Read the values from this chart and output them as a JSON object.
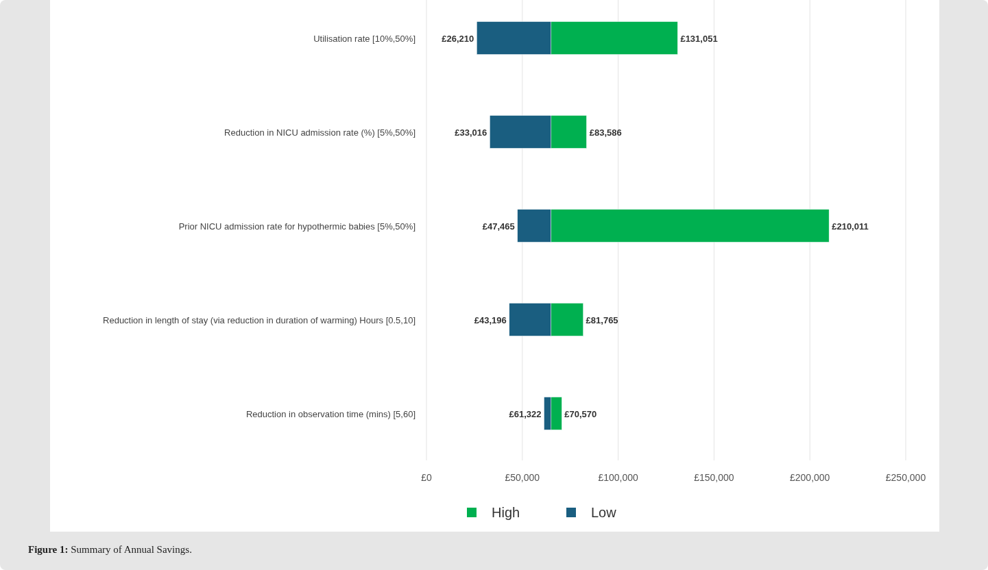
{
  "chart_data": {
    "type": "bar",
    "orientation": "horizontal",
    "categories": [
      "Utilisation rate [10%,50%]",
      "Reduction in NICU admission rate (%) [5%,50%]",
      "Prior NICU admission rate for hypothermic babies [5%,50%]",
      "Reduction in length of stay (via reduction in duration of warming) Hours [0.5,10]",
      "Reduction in observation time (mins) [5,60]"
    ],
    "series": [
      {
        "name": "High",
        "color": "#00b050",
        "base": [
          65000,
          65000,
          65000,
          65000,
          65000
        ],
        "values": [
          66000,
          18500,
          145000,
          16800,
          5600
        ]
      },
      {
        "name": "Low",
        "color": "#1a5e80",
        "base": [
          26210,
          33016,
          47465,
          43196,
          61322
        ],
        "values": [
          38800,
          32000,
          17500,
          21800,
          3700
        ]
      }
    ],
    "xlim": [
      0,
      250000
    ],
    "xticks": [
      {
        "value": 0,
        "label": "£0"
      },
      {
        "value": 50000,
        "label": "£50,000"
      },
      {
        "value": 100000,
        "label": "£100,000"
      },
      {
        "value": 150000,
        "label": "£150,000"
      },
      {
        "value": 200000,
        "label": "£200,000"
      },
      {
        "value": 250000,
        "label": "£250,000"
      }
    ],
    "grid": "x",
    "legend": "bottom",
    "annotations": [
      {
        "text": "£131,051",
        "x": 131051,
        "y": "Utilisation rate [10%,50%]"
      },
      {
        "text": "£26,210",
        "x": 26210,
        "y": "Utilisation rate [10%,50%]"
      },
      {
        "text": "£83,586",
        "x": 83586,
        "y": "Reduction in NICU admission rate (%) [5%,50%]"
      },
      {
        "text": "£33,016",
        "x": 33016,
        "y": "Reduction in NICU admission rate (%) [5%,50%]"
      },
      {
        "text": "£210,011",
        "x": 210011,
        "y": "Prior NICU admission rate for hypothermic babies [5%,50%]"
      },
      {
        "text": "£47,465",
        "x": 47465,
        "y": "Prior NICU admission rate for hypothermic babies [5%,50%]"
      },
      {
        "text": "£81,765",
        "x": 81765,
        "y": "Reduction in length of stay (via reduction in duration of warming) Hours [0.5,10]"
      },
      {
        "text": "£43,196",
        "x": 43196,
        "y": "Reduction in length of stay (via reduction in duration of warming) Hours [0.5,10]"
      },
      {
        "text": "£70,570",
        "x": 70570,
        "y": "Reduction in observation time (mins) [5,60]"
      },
      {
        "text": "£61,322",
        "x": 61322,
        "y": "Reduction in observation time (mins) [5,60]"
      },
      "Figure 1: Summary of Annual Savings."
    ]
  }
}
